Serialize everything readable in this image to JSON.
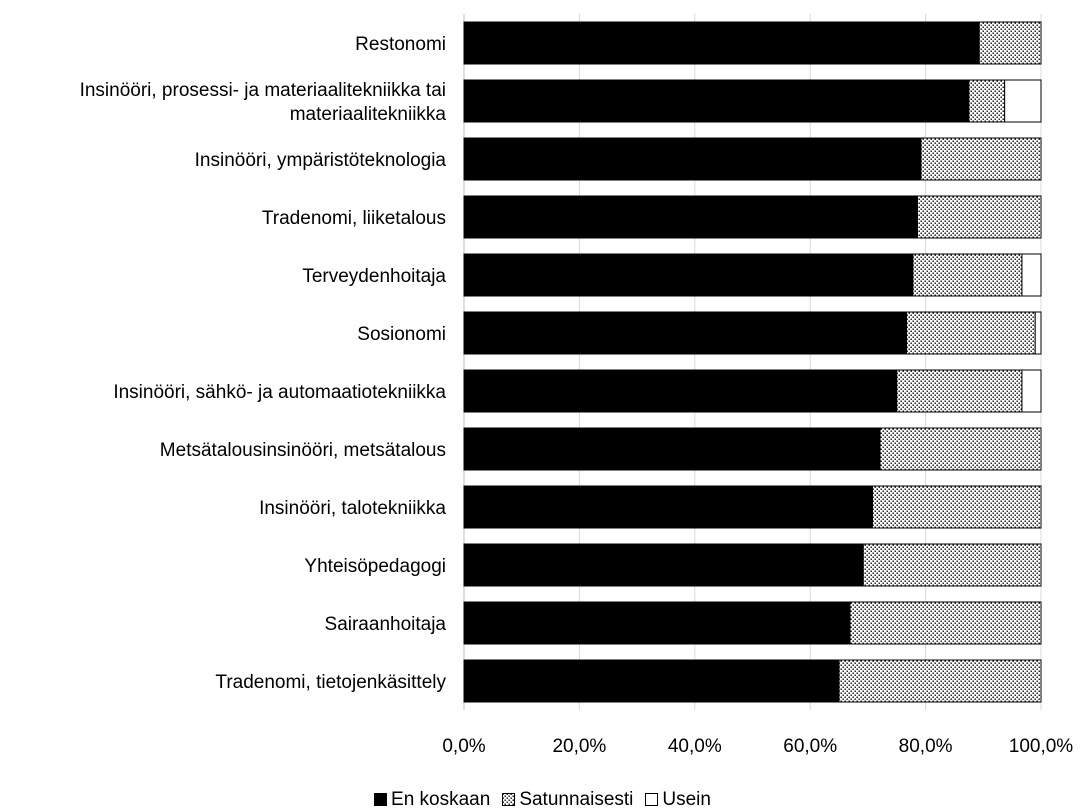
{
  "chart_data": {
    "type": "bar",
    "orientation": "horizontal",
    "stacked": true,
    "categories": [
      "Restonomi",
      [
        "Insinööri, prosessi- ja materiaalitekniikka tai",
        "materiaalitekniikka"
      ],
      "Insinööri, ympäristöteknologia",
      "Tradenomi, liiketalous",
      "Terveydenhoitaja",
      "Sosionomi",
      "Insinööri, sähkö- ja automaatiotekniikka",
      "Metsätalousinsinööri, metsätalous",
      "Insinööri, talotekniikka",
      "Yhteisöpedagogi",
      "Sairaanhoitaja",
      "Tradenomi, tietojenkäsittely"
    ],
    "series": [
      {
        "name": "En koskaan",
        "color": "#000000",
        "pattern": "solid",
        "values": [
          89.3,
          87.5,
          79.2,
          78.6,
          77.8,
          76.7,
          75.0,
          72.1,
          70.8,
          69.2,
          66.9,
          65.0
        ]
      },
      {
        "name": "Satunnaisesti",
        "color": "#ffffff",
        "pattern": "dotted",
        "values": [
          10.7,
          6.2,
          20.8,
          21.4,
          18.9,
          22.3,
          21.7,
          27.9,
          29.2,
          30.8,
          33.1,
          35.0
        ]
      },
      {
        "name": "Usein",
        "color": "#ffffff",
        "pattern": "empty",
        "values": [
          0.0,
          6.3,
          0.0,
          0.0,
          3.3,
          1.0,
          3.3,
          0.0,
          0.0,
          0.0,
          0.0,
          0.0
        ]
      }
    ],
    "xlim": [
      0,
      100
    ],
    "xticks": [
      "0,0%",
      "20,0%",
      "40,0%",
      "60,0%",
      "80,0%",
      "100,0%"
    ],
    "grid": true,
    "legend_position": "bottom",
    "title": "",
    "xlabel": "",
    "ylabel": ""
  }
}
